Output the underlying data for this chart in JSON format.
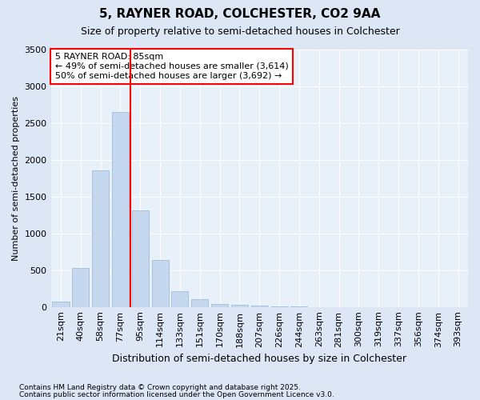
{
  "title": "5, RAYNER ROAD, COLCHESTER, CO2 9AA",
  "subtitle": "Size of property relative to semi-detached houses in Colchester",
  "xlabel": "Distribution of semi-detached houses by size in Colchester",
  "ylabel": "Number of semi-detached properties",
  "categories": [
    "21sqm",
    "40sqm",
    "58sqm",
    "77sqm",
    "95sqm",
    "114sqm",
    "133sqm",
    "151sqm",
    "170sqm",
    "188sqm",
    "207sqm",
    "226sqm",
    "244sqm",
    "263sqm",
    "281sqm",
    "300sqm",
    "319sqm",
    "337sqm",
    "356sqm",
    "374sqm",
    "393sqm"
  ],
  "values": [
    75,
    530,
    1850,
    2650,
    1310,
    640,
    215,
    110,
    40,
    25,
    15,
    8,
    4,
    0,
    0,
    0,
    0,
    0,
    0,
    0,
    0
  ],
  "bar_color": "#c5d8f0",
  "bar_edge_color": "#a0bcd8",
  "red_line_x": 3.5,
  "ann_line1": "5 RAYNER ROAD: 85sqm",
  "ann_line2": "← 49% of semi-detached houses are smaller (3,614)",
  "ann_line3": "50% of semi-detached houses are larger (3,692) →",
  "ylim": [
    0,
    3500
  ],
  "yticks": [
    0,
    500,
    1000,
    1500,
    2000,
    2500,
    3000,
    3500
  ],
  "footnote1": "Contains HM Land Registry data © Crown copyright and database right 2025.",
  "footnote2": "Contains public sector information licensed under the Open Government Licence v3.0.",
  "fig_bg_color": "#dce6f5",
  "plot_bg_color": "#e8f0fa"
}
